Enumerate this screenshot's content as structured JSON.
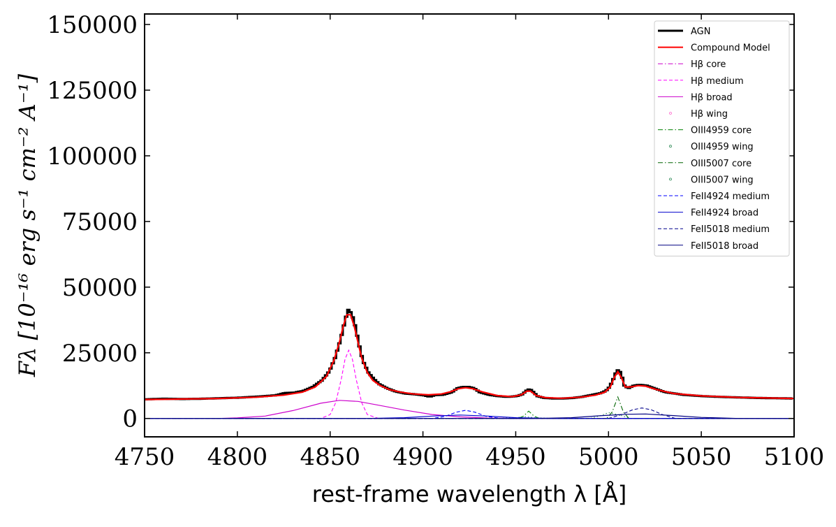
{
  "chart_data": {
    "type": "line",
    "xlabel": "rest-frame wavelength λ [Å]",
    "ylabel": "Fλ [10⁻¹⁶ erg s⁻¹ cm⁻² A⁻¹]",
    "xlim": [
      4750,
      5100
    ],
    "ylim": [
      -7000,
      154000
    ],
    "xticks": [
      4750,
      4800,
      4850,
      4900,
      4950,
      5000,
      5050,
      5100
    ],
    "xtick_labels": [
      "4750",
      "4800",
      "4850",
      "4900",
      "4950",
      "5000",
      "5050",
      "5100"
    ],
    "yticks": [
      0,
      25000,
      50000,
      75000,
      100000,
      125000,
      150000
    ],
    "ytick_labels": [
      "0",
      "25000",
      "50000",
      "75000",
      "100000",
      "125000",
      "150000"
    ],
    "legend_position": "top-right",
    "series": [
      {
        "name": "AGN",
        "color": "#000000",
        "style": "step"
      },
      {
        "name": "Compound Model",
        "color": "#ff0000",
        "style": "solid"
      },
      {
        "name": "Hβ core",
        "color": "#cc00cc",
        "style": "dashdot",
        "points": [
          [
            4750,
            0
          ],
          [
            5100,
            0
          ]
        ]
      },
      {
        "name": "Hβ medium",
        "color": "#ff00ff",
        "style": "dashed",
        "points": [
          [
            4750,
            0
          ],
          [
            4845,
            0
          ],
          [
            4850,
            1500
          ],
          [
            4853,
            6000
          ],
          [
            4856,
            15000
          ],
          [
            4858,
            22500
          ],
          [
            4860,
            26000
          ],
          [
            4862,
            22500
          ],
          [
            4864,
            15000
          ],
          [
            4867,
            6000
          ],
          [
            4870,
            1500
          ],
          [
            4876,
            0
          ],
          [
            5100,
            0
          ]
        ]
      },
      {
        "name": "Hβ broad",
        "color": "#cc00cc",
        "style": "solid",
        "points": [
          [
            4750,
            0
          ],
          [
            4790,
            0
          ],
          [
            4800,
            200
          ],
          [
            4815,
            900
          ],
          [
            4830,
            3000
          ],
          [
            4845,
            5800
          ],
          [
            4855,
            6900
          ],
          [
            4865,
            6500
          ],
          [
            4875,
            5200
          ],
          [
            4890,
            3200
          ],
          [
            4905,
            1500
          ],
          [
            4920,
            600
          ],
          [
            4935,
            150
          ],
          [
            4950,
            0
          ],
          [
            5100,
            0
          ]
        ]
      },
      {
        "name": "Hβ wing",
        "color": "#ff66cc",
        "style": "dotted",
        "points": [
          [
            4750,
            0
          ],
          [
            5100,
            0
          ]
        ]
      },
      {
        "name": "OIII4959 core",
        "color": "#008000",
        "style": "dashdot",
        "points": [
          [
            4750,
            0
          ],
          [
            4951,
            0
          ],
          [
            4954,
            800
          ],
          [
            4957,
            2800
          ],
          [
            4960,
            800
          ],
          [
            4963,
            0
          ],
          [
            5100,
            0
          ]
        ]
      },
      {
        "name": "OIII4959 wing",
        "color": "#2e8b57",
        "style": "dotted",
        "points": [
          [
            4750,
            0
          ],
          [
            4940,
            0
          ],
          [
            4950,
            300
          ],
          [
            4955,
            700
          ],
          [
            4960,
            300
          ],
          [
            4970,
            0
          ],
          [
            5100,
            0
          ]
        ]
      },
      {
        "name": "OIII5007 core",
        "color": "#006400",
        "style": "dashdot",
        "points": [
          [
            4750,
            0
          ],
          [
            4999,
            0
          ],
          [
            5002,
            2500
          ],
          [
            5005,
            8200
          ],
          [
            5008,
            2500
          ],
          [
            5011,
            0
          ],
          [
            5100,
            0
          ]
        ]
      },
      {
        "name": "OIII5007 wing",
        "color": "#2e8b57",
        "style": "dotted",
        "points": [
          [
            4750,
            0
          ],
          [
            4990,
            0
          ],
          [
            4995,
            900
          ],
          [
            5000,
            2200
          ],
          [
            5005,
            1500
          ],
          [
            5012,
            0
          ],
          [
            5100,
            0
          ]
        ]
      },
      {
        "name": "FeII4924 medium",
        "color": "#0000ff",
        "style": "dashed",
        "points": [
          [
            4750,
            0
          ],
          [
            4905,
            0
          ],
          [
            4912,
            800
          ],
          [
            4918,
            2400
          ],
          [
            4923,
            3100
          ],
          [
            4928,
            2400
          ],
          [
            4934,
            800
          ],
          [
            4942,
            0
          ],
          [
            5100,
            0
          ]
        ]
      },
      {
        "name": "FeII4924 broad",
        "color": "#0000cd",
        "style": "solid",
        "points": [
          [
            4750,
            0
          ],
          [
            4870,
            0
          ],
          [
            4890,
            300
          ],
          [
            4905,
            900
          ],
          [
            4920,
            1300
          ],
          [
            4935,
            900
          ],
          [
            4950,
            300
          ],
          [
            4970,
            0
          ],
          [
            5100,
            0
          ]
        ]
      },
      {
        "name": "FeII5018 medium",
        "color": "#00008b",
        "style": "dashed",
        "points": [
          [
            4750,
            0
          ],
          [
            5000,
            0
          ],
          [
            5007,
            1500
          ],
          [
            5013,
            3300
          ],
          [
            5018,
            4000
          ],
          [
            5023,
            3300
          ],
          [
            5029,
            1500
          ],
          [
            5036,
            0
          ],
          [
            5100,
            0
          ]
        ]
      },
      {
        "name": "FeII5018 broad",
        "color": "#000080",
        "style": "solid",
        "points": [
          [
            4750,
            0
          ],
          [
            4960,
            0
          ],
          [
            4980,
            300
          ],
          [
            4995,
            1000
          ],
          [
            5010,
            1600
          ],
          [
            5020,
            1700
          ],
          [
            5035,
            1100
          ],
          [
            5050,
            400
          ],
          [
            5070,
            0
          ],
          [
            5100,
            0
          ]
        ]
      }
    ],
    "agn_points": [
      [
        4750,
        7300
      ],
      [
        4760,
        7500
      ],
      [
        4770,
        7400
      ],
      [
        4780,
        7500
      ],
      [
        4790,
        7700
      ],
      [
        4800,
        7900
      ],
      [
        4810,
        8300
      ],
      [
        4820,
        8800
      ],
      [
        4825,
        9700
      ],
      [
        4830,
        9800
      ],
      [
        4835,
        10500
      ],
      [
        4840,
        12000
      ],
      [
        4845,
        14500
      ],
      [
        4849,
        18000
      ],
      [
        4852,
        23000
      ],
      [
        4855,
        30000
      ],
      [
        4857,
        36000
      ],
      [
        4859,
        41500
      ],
      [
        4861,
        40000
      ],
      [
        4863,
        35000
      ],
      [
        4865,
        28000
      ],
      [
        4867,
        22000
      ],
      [
        4870,
        17500
      ],
      [
        4873,
        15000
      ],
      [
        4876,
        13000
      ],
      [
        4880,
        11500
      ],
      [
        4885,
        10200
      ],
      [
        4890,
        9500
      ],
      [
        4895,
        9200
      ],
      [
        4900,
        8800
      ],
      [
        4903,
        8300
      ],
      [
        4906,
        8900
      ],
      [
        4910,
        9000
      ],
      [
        4915,
        10000
      ],
      [
        4918,
        11500
      ],
      [
        4921,
        12000
      ],
      [
        4924,
        12000
      ],
      [
        4927,
        11500
      ],
      [
        4930,
        10000
      ],
      [
        4935,
        9000
      ],
      [
        4940,
        8500
      ],
      [
        4945,
        8200
      ],
      [
        4950,
        8500
      ],
      [
        4953,
        9200
      ],
      [
        4955,
        10500
      ],
      [
        4957,
        11200
      ],
      [
        4959,
        10000
      ],
      [
        4961,
        8500
      ],
      [
        4965,
        7800
      ],
      [
        4970,
        7600
      ],
      [
        4975,
        7600
      ],
      [
        4980,
        7800
      ],
      [
        4985,
        8200
      ],
      [
        4990,
        8900
      ],
      [
        4995,
        9600
      ],
      [
        4998,
        10500
      ],
      [
        5000,
        12000
      ],
      [
        5002,
        15000
      ],
      [
        5004,
        18500
      ],
      [
        5006,
        17500
      ],
      [
        5008,
        12500
      ],
      [
        5010,
        11500
      ],
      [
        5013,
        12500
      ],
      [
        5016,
        12800
      ],
      [
        5020,
        12500
      ],
      [
        5024,
        11500
      ],
      [
        5030,
        10000
      ],
      [
        5040,
        9000
      ],
      [
        5050,
        8500
      ],
      [
        5060,
        8200
      ],
      [
        5070,
        8000
      ],
      [
        5080,
        7800
      ],
      [
        5090,
        7700
      ],
      [
        5100,
        7600
      ]
    ],
    "model_points": [
      [
        4750,
        7200
      ],
      [
        4770,
        7400
      ],
      [
        4790,
        7600
      ],
      [
        4810,
        8100
      ],
      [
        4825,
        8900
      ],
      [
        4835,
        10000
      ],
      [
        4842,
        12000
      ],
      [
        4848,
        16000
      ],
      [
        4852,
        22000
      ],
      [
        4855,
        29000
      ],
      [
        4857,
        35000
      ],
      [
        4859,
        39500
      ],
      [
        4861,
        39500
      ],
      [
        4863,
        35000
      ],
      [
        4865,
        29000
      ],
      [
        4867,
        23000
      ],
      [
        4870,
        17500
      ],
      [
        4873,
        14500
      ],
      [
        4877,
        12500
      ],
      [
        4882,
        11000
      ],
      [
        4888,
        10000
      ],
      [
        4895,
        9300
      ],
      [
        4903,
        9000
      ],
      [
        4910,
        9300
      ],
      [
        4915,
        10200
      ],
      [
        4919,
        11300
      ],
      [
        4923,
        11700
      ],
      [
        4927,
        11300
      ],
      [
        4932,
        10100
      ],
      [
        4940,
        8700
      ],
      [
        4948,
        8300
      ],
      [
        4953,
        9000
      ],
      [
        4956,
        10400
      ],
      [
        4958,
        10400
      ],
      [
        4961,
        8700
      ],
      [
        4966,
        7900
      ],
      [
        4975,
        7700
      ],
      [
        4985,
        8100
      ],
      [
        4993,
        8900
      ],
      [
        4998,
        10000
      ],
      [
        5001,
        12000
      ],
      [
        5003,
        15500
      ],
      [
        5005,
        17800
      ],
      [
        5007,
        15500
      ],
      [
        5009,
        12000
      ],
      [
        5012,
        12000
      ],
      [
        5016,
        12500
      ],
      [
        5020,
        12300
      ],
      [
        5026,
        11000
      ],
      [
        5035,
        9500
      ],
      [
        5050,
        8600
      ],
      [
        5070,
        8000
      ],
      [
        5100,
        7600
      ]
    ]
  }
}
